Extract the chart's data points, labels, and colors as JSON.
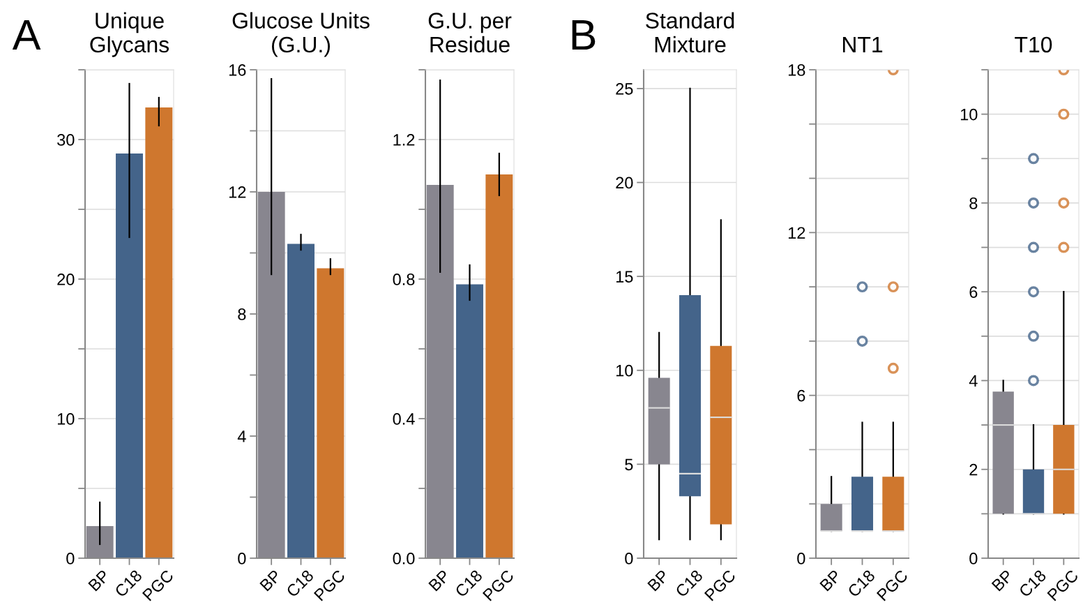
{
  "chart_data": [
    {
      "type": "bar",
      "title": "Unique\nGlycans",
      "annotations": [
        "A"
      ],
      "categories": [
        "BP",
        "C18",
        "PGC"
      ],
      "values": [
        2.3,
        29.0,
        32.3
      ],
      "errors": [
        [
          1,
          4
        ],
        [
          23,
          34
        ],
        [
          31,
          33
        ]
      ],
      "colors": [
        "#88868f",
        "#44648a",
        "#cf772e"
      ],
      "ylim": [
        0,
        35
      ],
      "yticks": [
        0,
        {
          "value": 5,
          "label": null
        },
        10,
        {
          "value": 15,
          "label": null
        },
        20,
        {
          "value": 25,
          "label": null
        },
        30,
        {
          "value": 35,
          "label": null
        }
      ],
      "grid": "y"
    },
    {
      "type": "bar",
      "title": "Glucose Units\n(G.U.)",
      "categories": [
        "BP",
        "C18",
        "PGC"
      ],
      "values": [
        12.0,
        10.3,
        9.5
      ],
      "errors": [
        [
          9.3,
          15.7
        ],
        [
          10.1,
          10.6
        ],
        [
          9.3,
          9.8
        ]
      ],
      "colors": [
        "#88868f",
        "#44648a",
        "#cf772e"
      ],
      "ylim": [
        0,
        16
      ],
      "yticks": [
        0,
        {
          "value": 2,
          "label": null
        },
        4,
        {
          "value": 6,
          "label": null
        },
        8,
        {
          "value": 10,
          "label": null
        },
        12,
        {
          "value": 14,
          "label": null
        },
        16
      ],
      "grid": "y"
    },
    {
      "type": "bar",
      "title": "G.U. per\nResidue",
      "categories": [
        "BP",
        "C18",
        "PGC"
      ],
      "values": [
        1.07,
        0.785,
        1.1
      ],
      "errors": [
        [
          0.82,
          1.37
        ],
        [
          0.74,
          0.84
        ],
        [
          1.04,
          1.16
        ]
      ],
      "colors": [
        "#88868f",
        "#44648a",
        "#cf772e"
      ],
      "ylim": [
        0,
        1.4
      ],
      "yticks": [
        {
          "value": 0,
          "label": "0.0"
        },
        {
          "value": 0.2,
          "label": null
        },
        {
          "value": 0.4,
          "label": "0.4"
        },
        {
          "value": 0.6,
          "label": null
        },
        {
          "value": 0.8,
          "label": "0.8"
        },
        {
          "value": 1.0,
          "label": null
        },
        {
          "value": 1.2,
          "label": "1.2"
        },
        {
          "value": 1.4,
          "label": null
        }
      ],
      "grid": "y"
    },
    {
      "type": "box",
      "title": "Standard\nMixture",
      "annotations": [
        "B"
      ],
      "categories": [
        "BP",
        "C18",
        "PGC"
      ],
      "boxes": [
        {
          "low": 1,
          "q1": 5,
          "median": 8,
          "q3": 9.6,
          "high": 12
        },
        {
          "low": 1,
          "q1": 3.3,
          "median": 4.5,
          "q3": 14,
          "high": 25
        },
        {
          "low": 1,
          "q1": 1.8,
          "median": 7.5,
          "q3": 11.3,
          "high": 18
        }
      ],
      "colors": [
        "#88868f",
        "#44648a",
        "#cf772e"
      ],
      "ylim": [
        0,
        26
      ],
      "yticks": [
        0,
        5,
        10,
        15,
        20,
        25
      ],
      "grid": "y"
    },
    {
      "type": "box",
      "title": "NT1",
      "categories": [
        "BP",
        "C18",
        "PGC"
      ],
      "boxes": [
        {
          "low": 1,
          "q1": 1,
          "median": 1,
          "q3": 2,
          "high": 3
        },
        {
          "low": 1,
          "q1": 1,
          "median": 1,
          "q3": 3,
          "high": 5,
          "outliers": [
            8,
            10
          ]
        },
        {
          "low": 1,
          "q1": 1,
          "median": 1,
          "q3": 3,
          "high": 5,
          "outliers": [
            7,
            10,
            18
          ]
        }
      ],
      "colors": [
        "#88868f",
        "#44648a",
        "#cf772e"
      ],
      "ylim": [
        0,
        18
      ],
      "yticks": [
        0,
        {
          "value": 2,
          "label": null
        },
        {
          "value": 4,
          "label": null
        },
        6,
        {
          "value": 8,
          "label": null
        },
        {
          "value": 10,
          "label": null
        },
        12,
        {
          "value": 14,
          "label": null
        },
        {
          "value": 16,
          "label": null
        },
        18
      ],
      "grid": "y"
    },
    {
      "type": "box",
      "title": "T10",
      "categories": [
        "BP",
        "C18",
        "PGC"
      ],
      "boxes": [
        {
          "low": 1,
          "q1": 1,
          "median": 3,
          "q3": 3.75,
          "high": 4
        },
        {
          "low": 1,
          "q1": 1,
          "median": 1,
          "q3": 2,
          "high": 3,
          "outliers": [
            4,
            5,
            6,
            7,
            8,
            9
          ]
        },
        {
          "low": 1,
          "q1": 1,
          "median": 2,
          "q3": 3,
          "high": 6,
          "outliers": [
            7,
            8,
            10,
            11
          ]
        }
      ],
      "colors": [
        "#88868f",
        "#44648a",
        "#cf772e"
      ],
      "ylim": [
        0,
        11
      ],
      "yticks": [
        0,
        {
          "value": 1,
          "label": null
        },
        2,
        {
          "value": 3,
          "label": null
        },
        4,
        {
          "value": 5,
          "label": null
        },
        6,
        {
          "value": 7,
          "label": null
        },
        8,
        {
          "value": 9,
          "label": null
        },
        10,
        {
          "value": 11,
          "label": null
        }
      ],
      "grid": "y"
    }
  ]
}
